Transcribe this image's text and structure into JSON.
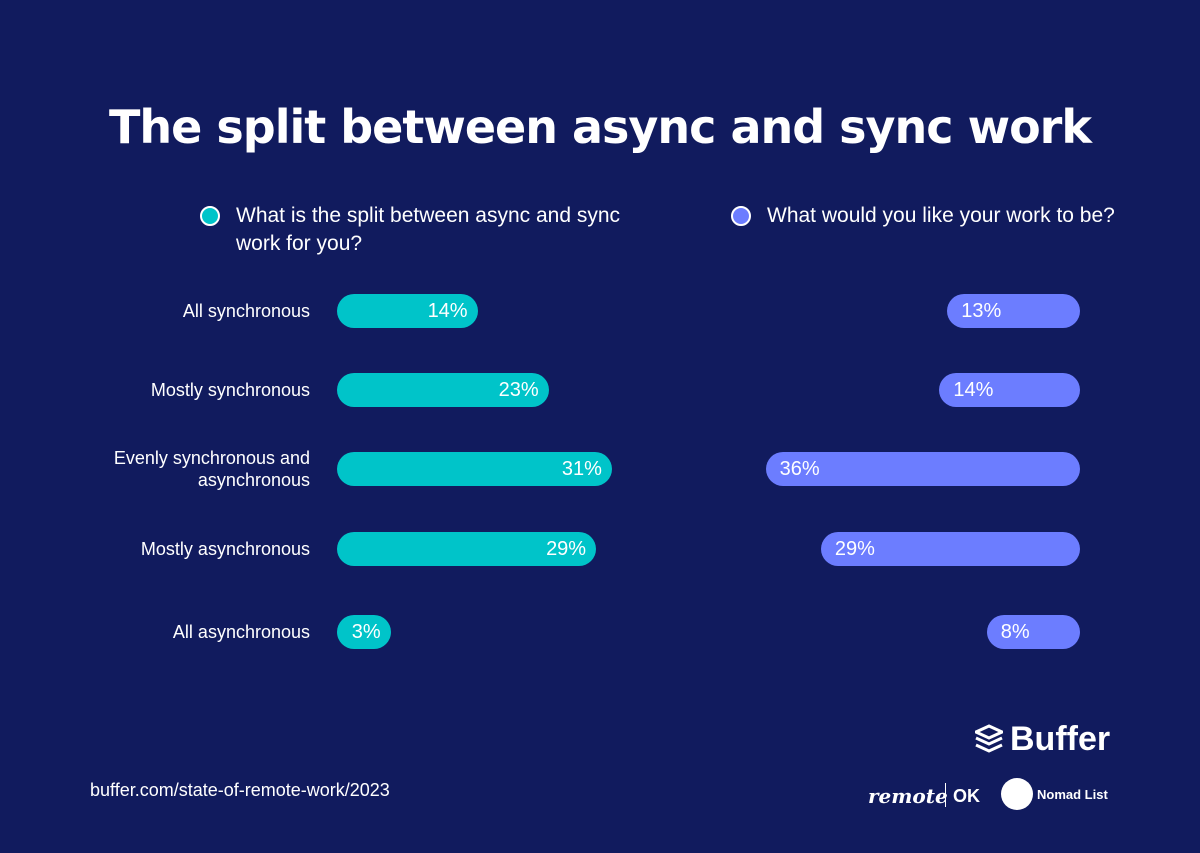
{
  "chart_data": {
    "type": "bar",
    "title": "The split between async and sync work",
    "categories": [
      "All synchronous",
      "Mostly synchronous",
      "Evenly synchronous and asynchronous",
      "Mostly asynchronous",
      "All asynchronous"
    ],
    "series": [
      {
        "name": "What is the split between async and sync work for you?",
        "color": "#00c4c9",
        "values": [
          14,
          23,
          31,
          29,
          3
        ],
        "value_labels": [
          "14%",
          "23%",
          "31%",
          "29%",
          "3%"
        ]
      },
      {
        "name": "What would you like your work to be?",
        "color": "#6c7dff",
        "values": [
          13,
          14,
          36,
          29,
          8
        ],
        "value_labels": [
          "13%",
          "14%",
          "36%",
          "29%",
          "8%"
        ]
      }
    ],
    "source": "buffer.com/state-of-remote-work/2023",
    "logos": [
      "Buffer",
      "remote",
      "OK",
      "Nomad List"
    ]
  }
}
